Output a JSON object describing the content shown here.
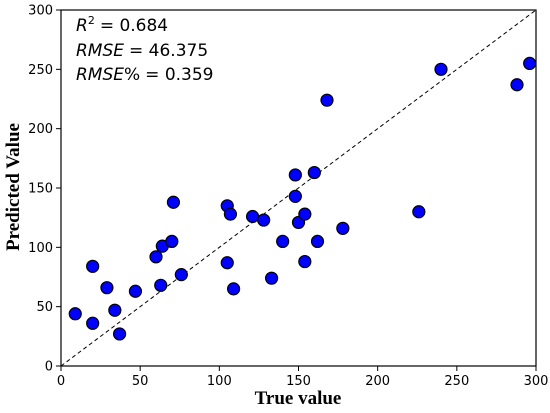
{
  "chart_data": {
    "type": "scatter",
    "title": "",
    "xlabel": "True value",
    "ylabel": "Predicted Value",
    "xlim": [
      0,
      300
    ],
    "ylim": [
      0,
      300
    ],
    "xticks": [
      0,
      50,
      100,
      150,
      200,
      250,
      300
    ],
    "yticks": [
      0,
      50,
      100,
      150,
      200,
      250,
      300
    ],
    "grid": false,
    "reference_line": {
      "style": "dashed",
      "from": [
        0,
        0
      ],
      "to": [
        300,
        300
      ]
    },
    "annotations": [
      {
        "name": "R",
        "superscript": "2",
        "value": "= 0.684"
      },
      {
        "name": "RMSE",
        "value": "= 46.375"
      },
      {
        "name": "RMSE",
        "suffix": "%",
        "value": "= 0.359"
      }
    ],
    "series": [
      {
        "marker_color": "#0000ff",
        "edge_color": "#000000",
        "points": [
          [
            9,
            44
          ],
          [
            20,
            36
          ],
          [
            20,
            84
          ],
          [
            29,
            66
          ],
          [
            34,
            47
          ],
          [
            37,
            27
          ],
          [
            47,
            63
          ],
          [
            60,
            92
          ],
          [
            63,
            68
          ],
          [
            64,
            101
          ],
          [
            70,
            105
          ],
          [
            71,
            138
          ],
          [
            76,
            77
          ],
          [
            105,
            135
          ],
          [
            105,
            87
          ],
          [
            107,
            128
          ],
          [
            109,
            65
          ],
          [
            121,
            126
          ],
          [
            128,
            123
          ],
          [
            133,
            74
          ],
          [
            140,
            105
          ],
          [
            148,
            143
          ],
          [
            148,
            161
          ],
          [
            150,
            121
          ],
          [
            154,
            88
          ],
          [
            154,
            128
          ],
          [
            160,
            163
          ],
          [
            162,
            105
          ],
          [
            168,
            224
          ],
          [
            178,
            116
          ],
          [
            226,
            130
          ],
          [
            240,
            250
          ],
          [
            288,
            237
          ],
          [
            296,
            255
          ]
        ]
      }
    ]
  }
}
